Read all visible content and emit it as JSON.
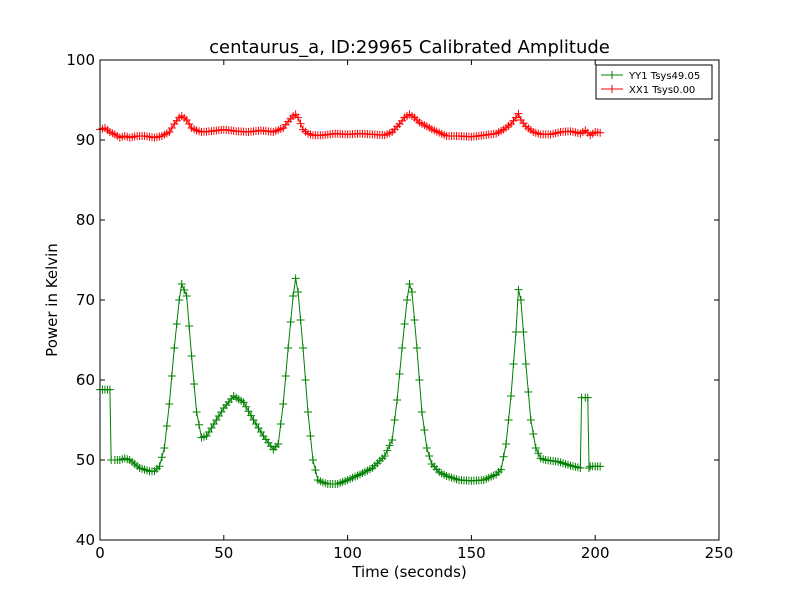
{
  "chart_data": {
    "type": "line",
    "title": "centaurus_a, ID:29965 Calibrated Amplitude",
    "xlabel": "Time (seconds)",
    "ylabel": "Power in Kelvin",
    "xlim": [
      0,
      250
    ],
    "ylim": [
      40,
      100
    ],
    "xticks": [
      0,
      50,
      100,
      150,
      200,
      250
    ],
    "yticks": [
      40,
      50,
      60,
      70,
      80,
      90,
      100
    ],
    "grid": false,
    "legend_position": "top-right",
    "marker": "+",
    "series": [
      {
        "name": "YY1 Tsys49.05",
        "color": "#008000",
        "x": [
          0,
          2,
          4,
          4.5,
          6,
          8,
          10,
          12,
          14,
          16,
          18,
          20,
          22,
          24,
          26,
          28,
          30,
          32,
          33,
          35,
          37,
          39,
          41,
          43,
          46,
          50,
          54,
          58,
          62,
          66,
          70,
          72,
          74,
          76,
          78,
          79,
          80,
          82,
          84,
          86,
          88,
          90,
          92,
          94,
          96,
          100,
          105,
          110,
          115,
          118,
          120,
          122,
          124,
          125,
          126,
          128,
          130,
          132,
          134,
          137,
          140,
          145,
          150,
          155,
          160,
          162,
          164,
          166,
          168,
          169,
          170,
          172,
          174,
          176,
          178,
          180,
          185,
          190,
          194,
          194.5,
          196,
          197,
          197.5,
          198,
          200,
          202
        ],
        "y": [
          58.8,
          58.8,
          58.8,
          50.0,
          50.0,
          50.0,
          50.2,
          50.0,
          49.5,
          49.0,
          48.8,
          48.6,
          48.6,
          49.2,
          51.5,
          57.0,
          64.0,
          70.0,
          72.0,
          70.5,
          63.0,
          56.0,
          52.8,
          53.0,
          54.5,
          56.5,
          58.0,
          57.2,
          55.0,
          53.0,
          51.3,
          52.0,
          57.0,
          64.0,
          70.5,
          72.7,
          71.0,
          64.0,
          56.0,
          50.0,
          47.5,
          47.2,
          47.0,
          47.0,
          47.0,
          47.5,
          48.2,
          49.0,
          50.5,
          52.5,
          57.5,
          64.0,
          70.0,
          72.0,
          71.0,
          64.0,
          56.0,
          51.5,
          49.5,
          48.5,
          48.0,
          47.5,
          47.4,
          47.5,
          48.2,
          48.8,
          52.0,
          58.0,
          66.0,
          71.3,
          70.0,
          62.0,
          55.0,
          51.5,
          50.2,
          50.0,
          49.8,
          49.3,
          49.0,
          57.8,
          57.8,
          57.8,
          49.0,
          49.2,
          49.2,
          49.2
        ]
      },
      {
        "name": "XX1 Tsys0.00",
        "color": "#ff0000",
        "x": [
          0,
          2,
          4,
          6,
          8,
          10,
          12,
          15,
          18,
          20,
          22,
          25,
          28,
          30,
          32,
          33,
          35,
          37,
          39,
          41,
          45,
          50,
          55,
          60,
          65,
          70,
          74,
          76,
          78,
          79,
          80,
          82,
          84,
          86,
          90,
          95,
          100,
          105,
          110,
          115,
          118,
          121,
          123,
          125,
          127,
          129,
          132,
          135,
          140,
          145,
          150,
          155,
          160,
          163,
          166,
          168,
          169,
          170,
          172,
          175,
          178,
          182,
          186,
          190,
          194,
          196,
          198,
          200,
          202
        ],
        "y": [
          91.3,
          91.5,
          91.0,
          90.7,
          90.3,
          90.5,
          90.3,
          90.5,
          90.5,
          90.4,
          90.3,
          90.5,
          91.0,
          92.0,
          92.8,
          93.0,
          92.5,
          91.5,
          91.2,
          91.0,
          91.1,
          91.3,
          91.1,
          91.0,
          91.2,
          91.0,
          91.5,
          92.3,
          93.0,
          93.2,
          92.8,
          91.3,
          90.8,
          90.6,
          90.6,
          90.8,
          90.7,
          90.8,
          90.7,
          90.6,
          91.0,
          92.0,
          92.8,
          93.2,
          92.8,
          92.2,
          91.7,
          91.2,
          90.5,
          90.5,
          90.4,
          90.6,
          90.8,
          91.3,
          92.0,
          92.8,
          93.3,
          92.5,
          91.7,
          91.0,
          90.7,
          90.7,
          91.0,
          91.1,
          90.8,
          91.2,
          90.6,
          91.0,
          90.9
        ]
      }
    ]
  }
}
